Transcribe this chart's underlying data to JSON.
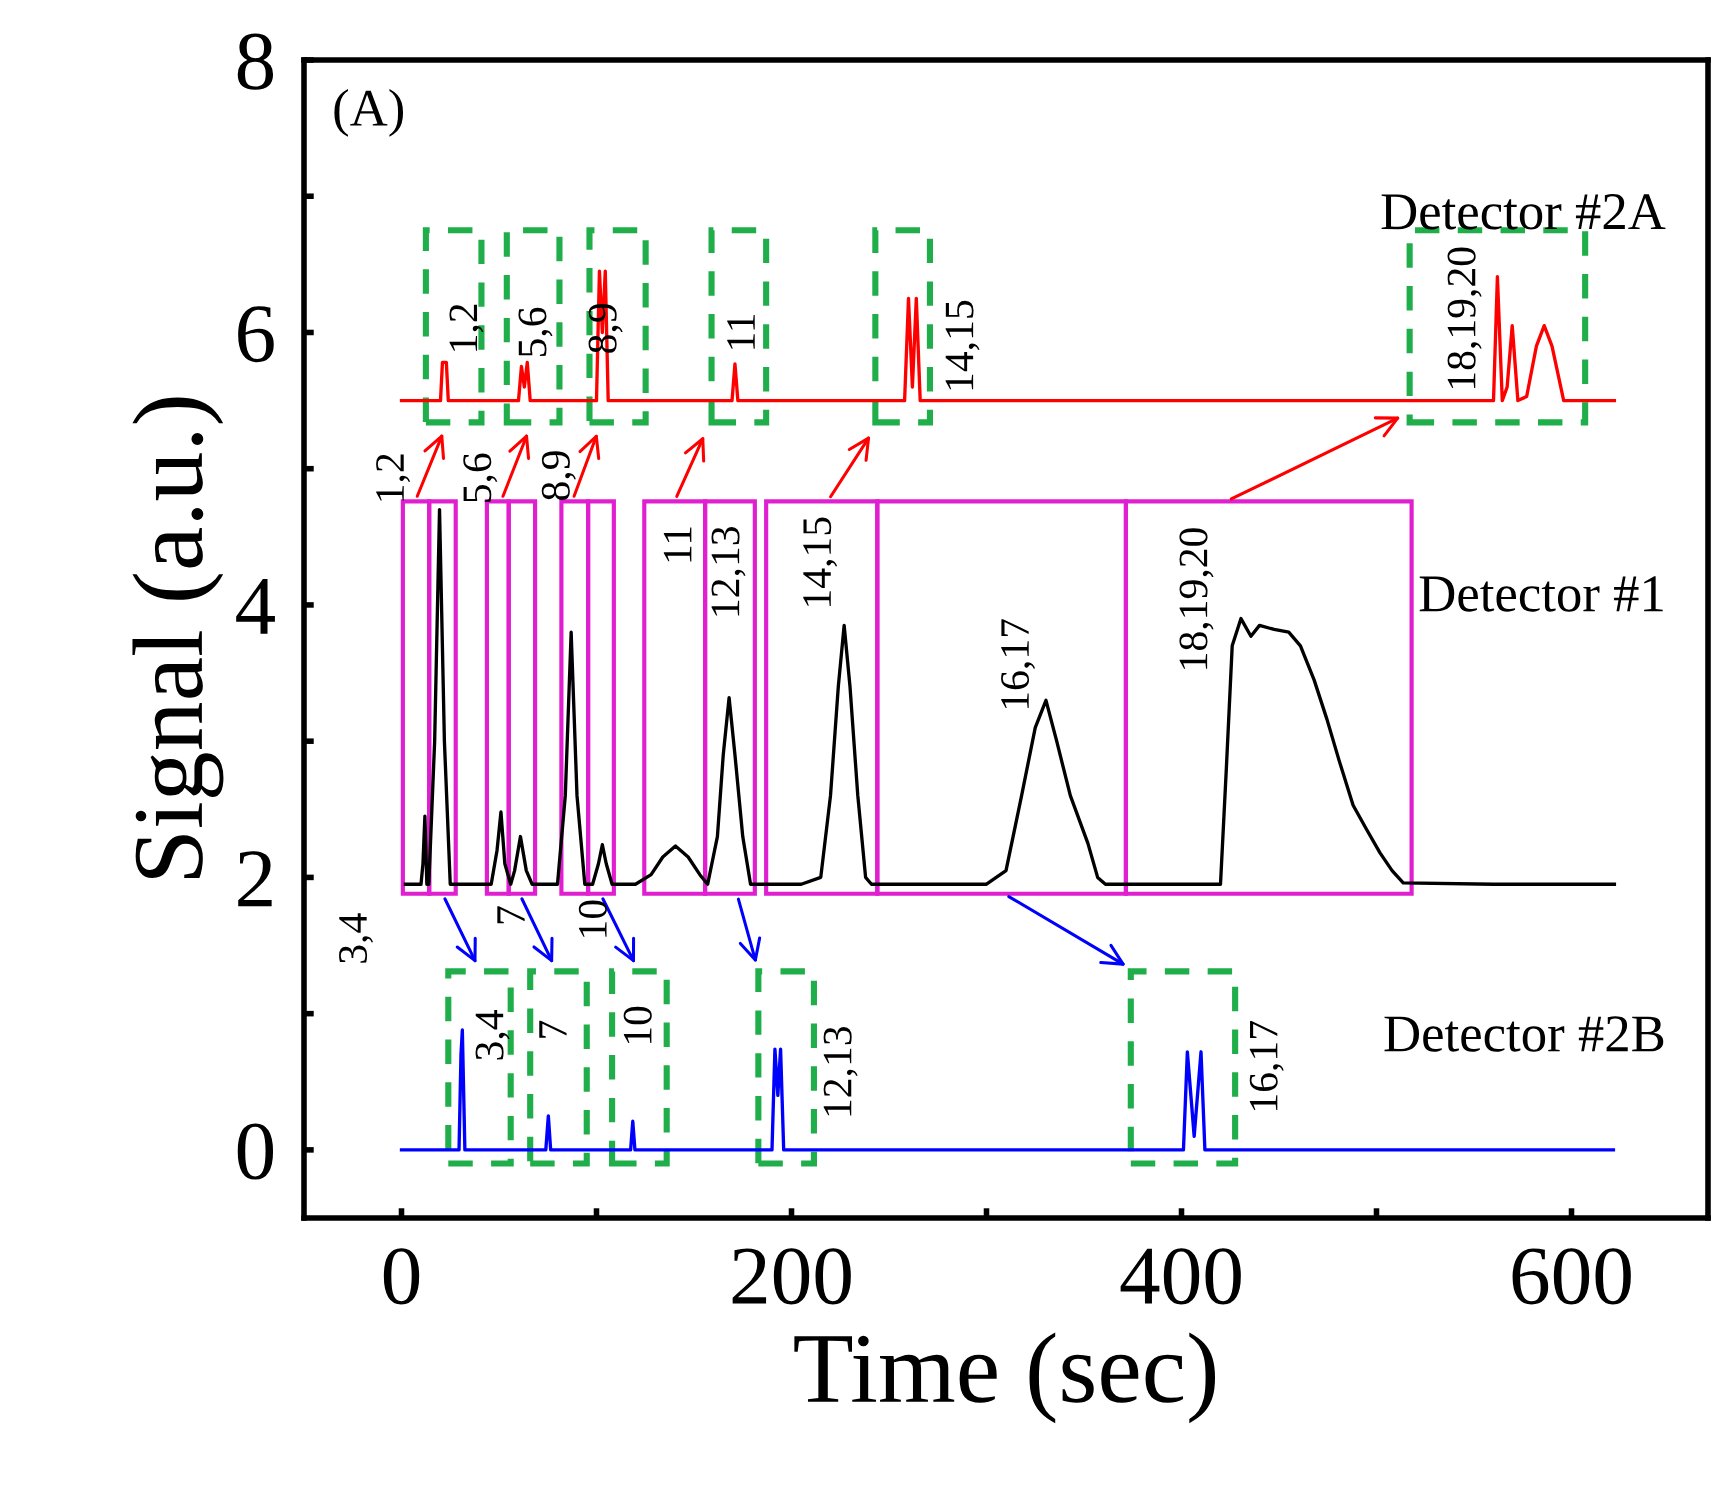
{
  "chart_data": {
    "type": "line",
    "xlabel": "Time (sec)",
    "ylabel": "Signal (a.u.)",
    "xlim": [
      -50,
      670
    ],
    "ylim": [
      -0.5,
      8
    ],
    "xticks": [
      0,
      {
        "value": 100,
        "label": null
      },
      200,
      {
        "value": 300,
        "label": null
      },
      400,
      {
        "value": 500,
        "label": null
      },
      600
    ],
    "yticks": [
      0,
      {
        "value": 1,
        "label": null
      },
      2,
      {
        "value": 3,
        "label": null
      },
      4,
      {
        "value": 5,
        "label": null
      },
      6,
      {
        "value": 7,
        "label": null
      },
      8
    ],
    "grid": false,
    "legend": false,
    "marker": "none",
    "line_style": "solid",
    "series": [
      {
        "name": "Detector #2A",
        "color": "#ff0000",
        "x": [
          0,
          20,
          21,
          23,
          24,
          60,
          61.5,
          63,
          64.5,
          66,
          100,
          101.5,
          103,
          104.5,
          106,
          169.5,
          171,
          172.5,
          258,
          260,
          262,
          264,
          266,
          560,
          562,
          564.5,
          567,
          569.6,
          572.5,
          577,
          582,
          586,
          590,
          596,
          622
        ],
        "values": [
          5.5,
          5.5,
          5.78,
          5.78,
          5.5,
          5.5,
          5.75,
          5.6,
          5.78,
          5.5,
          5.5,
          6.45,
          6.0,
          6.45,
          5.5,
          5.5,
          5.77,
          5.5,
          5.5,
          6.25,
          5.6,
          6.25,
          5.5,
          5.5,
          6.41,
          5.5,
          5.6,
          6.05,
          5.5,
          5.53,
          5.9,
          6.05,
          5.9,
          5.5,
          5.5
        ]
      },
      {
        "name": "Detector #1",
        "color": "#000000",
        "x": [
          2,
          10,
          11,
          12,
          13,
          14,
          17,
          19.5,
          22,
          25,
          40,
          46,
          49,
          51,
          53,
          56,
          58,
          61,
          64,
          67,
          80,
          84,
          87,
          90,
          94,
          98,
          101,
          103,
          105,
          108,
          120,
          128,
          134,
          140.5,
          147,
          153,
          157,
          162,
          165,
          168,
          171,
          175,
          179,
          205,
          215,
          220,
          224,
          227,
          230,
          234,
          238,
          241,
          300,
          310,
          318,
          325,
          330.5,
          336,
          343,
          352,
          357,
          361,
          410,
          420,
          423,
          426,
          430.5,
          435.6,
          440,
          447.5,
          455,
          461,
          468,
          474.6,
          481,
          488,
          495,
          501.8,
          508,
          513.7,
          560,
          622
        ],
        "values": [
          1.95,
          1.95,
          2.1,
          2.45,
          1.95,
          1.95,
          3.0,
          4.7,
          3.0,
          1.95,
          1.95,
          1.95,
          2.2,
          2.48,
          2.1,
          1.95,
          2.05,
          2.3,
          2.05,
          1.95,
          1.95,
          2.6,
          3.8,
          2.6,
          1.95,
          1.95,
          2.1,
          2.24,
          2.1,
          1.95,
          1.95,
          2.02,
          2.15,
          2.23,
          2.15,
          2.02,
          1.95,
          2.3,
          2.9,
          3.32,
          2.9,
          2.3,
          1.95,
          1.95,
          2.0,
          2.6,
          3.4,
          3.85,
          3.4,
          2.6,
          2.0,
          1.95,
          1.95,
          2.05,
          2.6,
          3.1,
          3.3,
          3.0,
          2.6,
          2.25,
          2.0,
          1.95,
          1.95,
          1.95,
          2.8,
          3.7,
          3.9,
          3.77,
          3.85,
          3.82,
          3.8,
          3.7,
          3.45,
          3.16,
          2.85,
          2.53,
          2.35,
          2.18,
          2.05,
          1.96,
          1.95,
          1.95
        ]
      },
      {
        "name": "Detector #2B",
        "color": "#0000ff",
        "x": [
          0,
          29.5,
          30.5,
          31.2,
          32.5,
          74,
          75.3,
          76.5,
          117.5,
          118.6,
          119.7,
          190,
          191.5,
          193,
          194.4,
          196,
          401,
          403,
          406.5,
          410,
          412,
          621.5
        ],
        "values": [
          0,
          0,
          0.7,
          0.88,
          0,
          0,
          0.25,
          0,
          0,
          0.21,
          0,
          0,
          0.74,
          0.4,
          0.74,
          0,
          0,
          0.72,
          0.1,
          0.72,
          0,
          0
        ]
      }
    ],
    "annotations": [
      "(A)",
      "1,2",
      "5,6",
      "8,9",
      "11",
      "14,15",
      "18,19,20",
      "1,2",
      "5,6",
      "8,9",
      "11",
      "12,13",
      "14,15",
      "16,17",
      "18,19,20",
      "3,4",
      "7",
      "10",
      "3,4",
      "7",
      "10",
      "12,13",
      "16,17"
    ]
  }
}
